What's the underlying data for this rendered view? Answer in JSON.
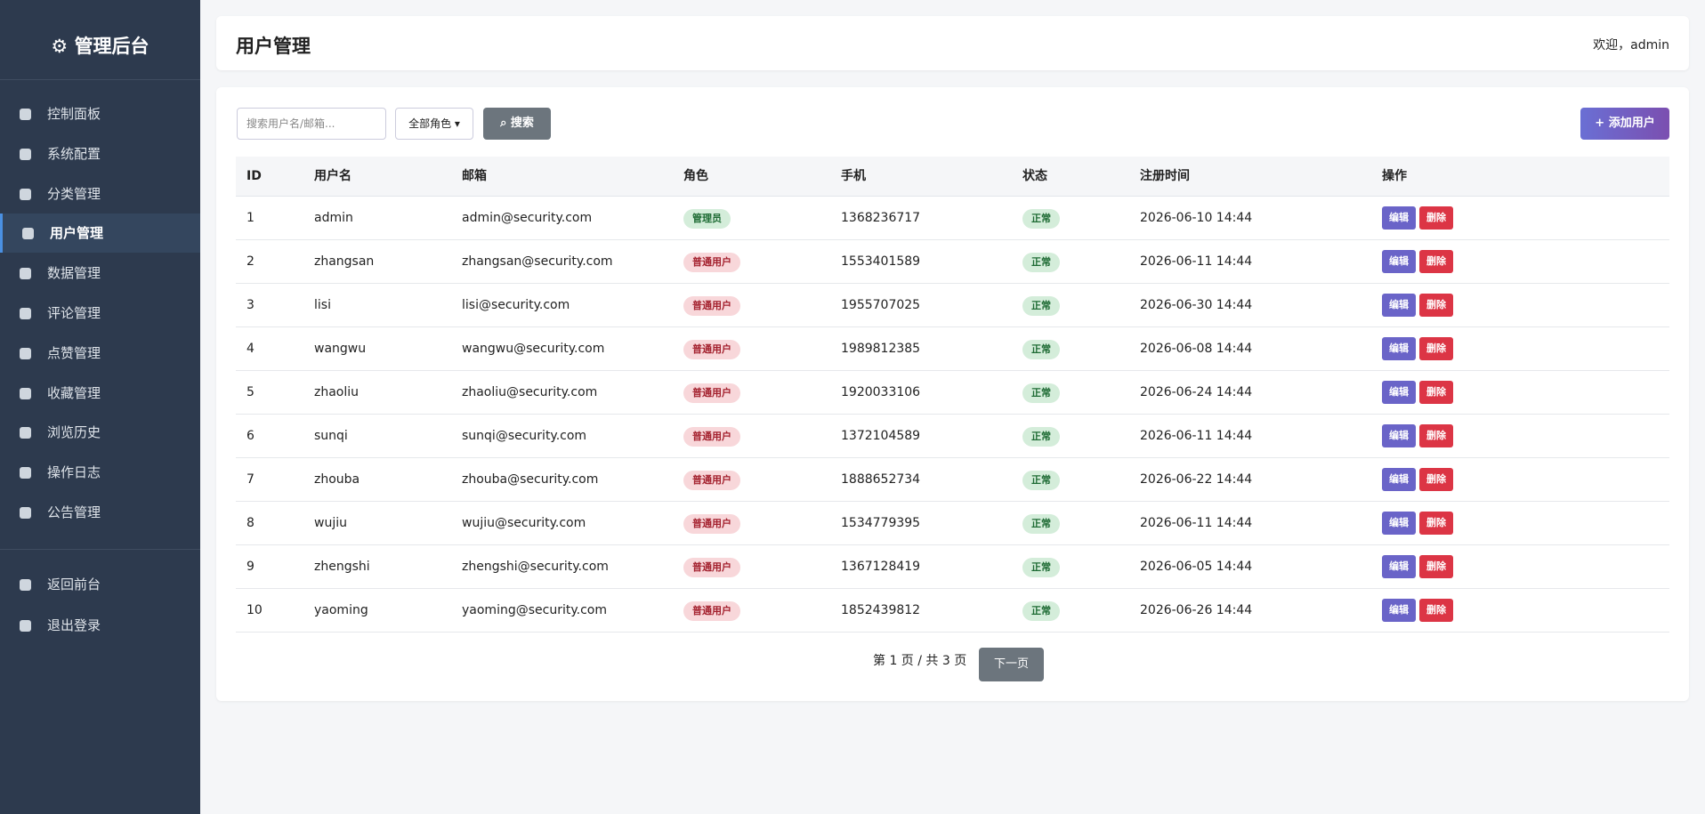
{
  "sidebar": {
    "brand": "管理后台",
    "menu": [
      "控制面板",
      "系统配置",
      "分类管理",
      "用户管理",
      "数据管理",
      "评论管理",
      "点赞管理",
      "收藏管理",
      "浏览历史",
      "操作日志",
      "公告管理"
    ],
    "active_index": 3,
    "footer_menu": [
      "返回前台",
      "退出登录"
    ]
  },
  "header": {
    "title": "用户管理",
    "welcome": "欢迎，admin"
  },
  "toolbar": {
    "search_placeholder": "搜索用户名/邮箱...",
    "role_filter": "全部角色",
    "search_button": "搜索",
    "add_button": "+ 添加用户"
  },
  "table": {
    "columns": [
      "ID",
      "用户名",
      "邮箱",
      "角色",
      "手机",
      "状态",
      "注册时间",
      "操作"
    ],
    "rows": [
      [
        "1",
        "admin",
        "admin@security.com",
        "管理员",
        "1368236717",
        "正常",
        "2026-06-10 14:44"
      ],
      [
        "2",
        "zhangsan",
        "zhangsan@security.com",
        "普通用户",
        "1553401589",
        "正常",
        "2026-06-11 14:44"
      ],
      [
        "3",
        "lisi",
        "lisi@security.com",
        "普通用户",
        "1955707025",
        "正常",
        "2026-06-30 14:44"
      ],
      [
        "4",
        "wangwu",
        "wangwu@security.com",
        "普通用户",
        "1989812385",
        "正常",
        "2026-06-08 14:44"
      ],
      [
        "5",
        "zhaoliu",
        "zhaoliu@security.com",
        "普通用户",
        "1920033106",
        "正常",
        "2026-06-24 14:44"
      ],
      [
        "6",
        "sunqi",
        "sunqi@security.com",
        "普通用户",
        "1372104589",
        "正常",
        "2026-06-11 14:44"
      ],
      [
        "7",
        "zhouba",
        "zhouba@security.com",
        "普通用户",
        "1888652734",
        "正常",
        "2026-06-22 14:44"
      ],
      [
        "8",
        "wujiu",
        "wujiu@security.com",
        "普通用户",
        "1534779395",
        "正常",
        "2026-06-11 14:44"
      ],
      [
        "9",
        "zhengshi",
        "zhengshi@security.com",
        "普通用户",
        "1367128419",
        "正常",
        "2026-06-05 14:44"
      ],
      [
        "10",
        "yaoming",
        "yaoming@security.com",
        "普通用户",
        "1852439812",
        "正常",
        "2026-06-26 14:44"
      ]
    ],
    "role_tones": [
      "success",
      "danger",
      "danger",
      "danger",
      "danger",
      "danger",
      "danger",
      "danger",
      "danger",
      "danger"
    ],
    "row_actions": [
      "编辑",
      "删除"
    ]
  },
  "pagination": {
    "info": "第 1 页 / 共 3 页",
    "next": "下一页"
  }
}
